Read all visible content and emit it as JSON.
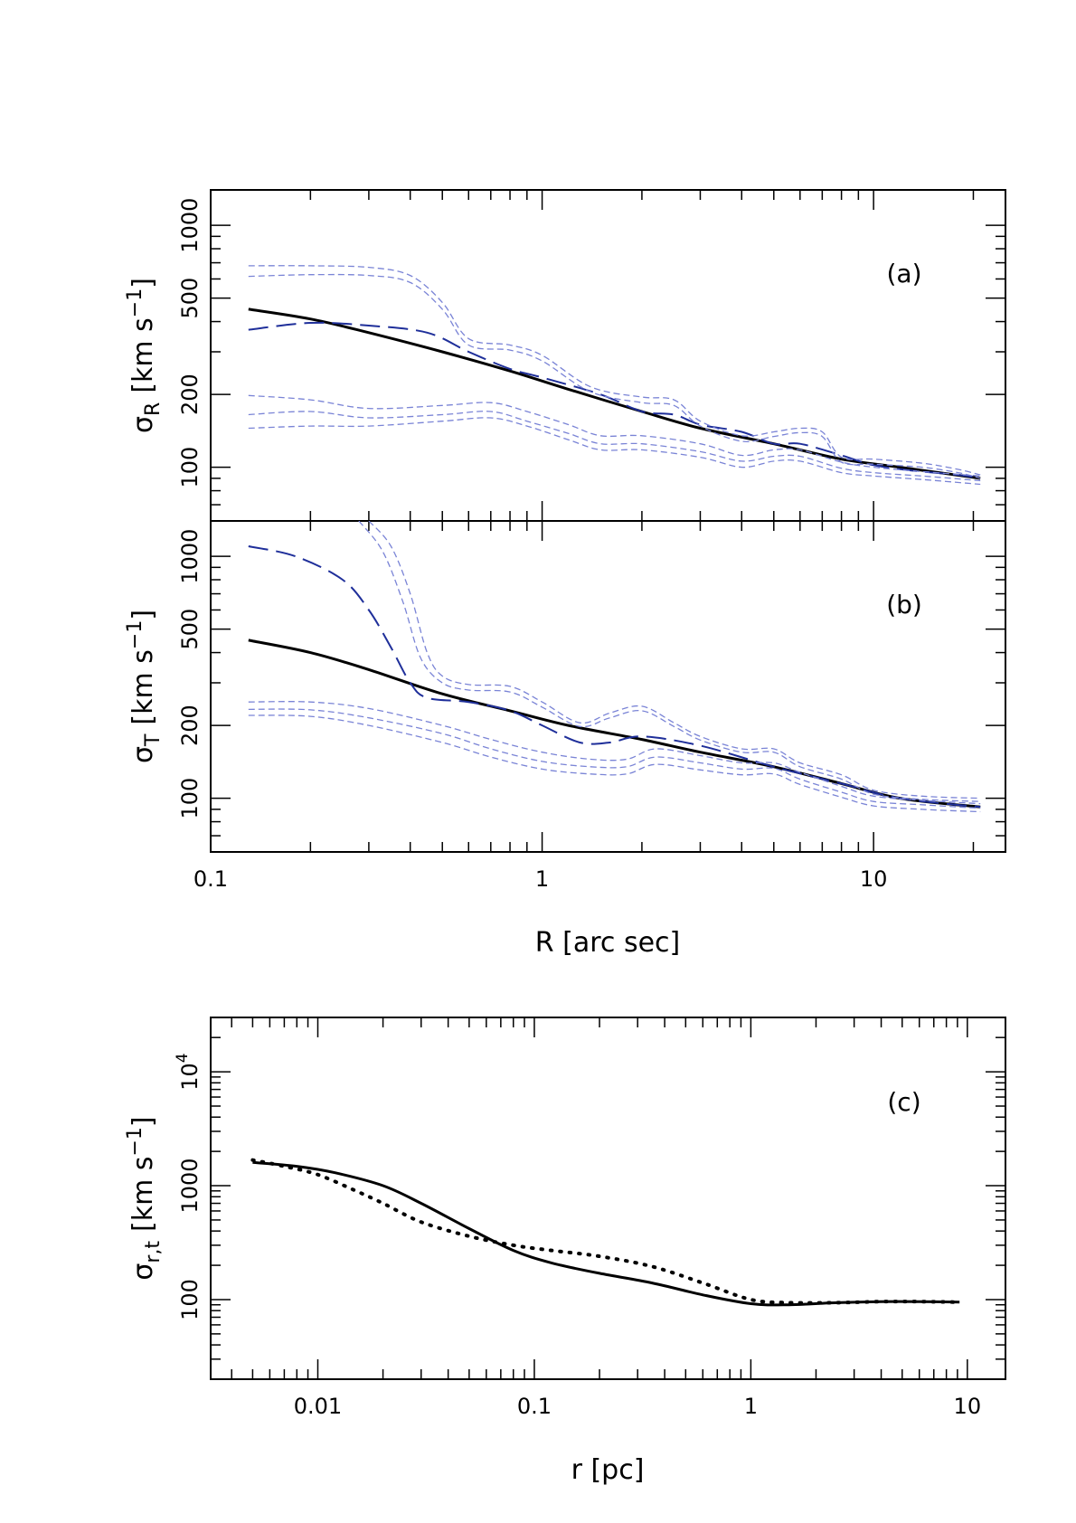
{
  "figure": {
    "shared_xlabel_top": "R [arc sec]",
    "xlabel_bottom": "r [pc]"
  },
  "colors": {
    "model": "#000000",
    "mean_dashed": "#1f2f9a",
    "bands": "#7a84d6"
  },
  "chart_data": [
    {
      "id": "a",
      "type": "line",
      "panel_label": "(a)",
      "ylabel": "σR [km s−1]",
      "ylabel_main": "σ",
      "ylabel_sub": "R",
      "ylabel_units": "[km s",
      "ylabel_exp": "−1",
      "ylabel_close": "]",
      "xlabel": "R [arc sec]",
      "xscale": "log",
      "yscale": "log",
      "xlim": [
        0.1,
        25
      ],
      "ylim": [
        60,
        1400
      ],
      "xtick_labels": [],
      "ytick_labels": [
        "100",
        "200",
        "500",
        "1000"
      ],
      "ytick_values": [
        100,
        200,
        500,
        1000
      ],
      "series": [
        {
          "name": "model",
          "style": "solid",
          "x": [
            0.13,
            0.2,
            0.3,
            0.5,
            0.8,
            1.2,
            2,
            3,
            5,
            8,
            12,
            21
          ],
          "y": [
            450,
            410,
            360,
            300,
            250,
            210,
            170,
            145,
            125,
            108,
            100,
            90
          ]
        },
        {
          "name": "mean",
          "style": "dashed",
          "x": [
            0.13,
            0.2,
            0.3,
            0.45,
            0.6,
            0.8,
            1.0,
            1.5,
            2,
            2.5,
            3,
            4,
            5,
            6,
            8,
            10,
            13,
            18,
            21
          ],
          "y": [
            370,
            395,
            385,
            360,
            300,
            255,
            235,
            200,
            170,
            165,
            150,
            140,
            125,
            125,
            112,
            102,
            97,
            93,
            90
          ]
        },
        {
          "name": "upper-1",
          "style": "band",
          "x": [
            0.13,
            0.2,
            0.3,
            0.4,
            0.5,
            0.6,
            0.8,
            1.0,
            1.4,
            2,
            2.5,
            3,
            4,
            5,
            6,
            7,
            8,
            10,
            14,
            18,
            21
          ],
          "y": [
            680,
            680,
            670,
            620,
            480,
            340,
            320,
            290,
            215,
            195,
            190,
            155,
            135,
            140,
            145,
            140,
            110,
            108,
            104,
            98,
            93
          ]
        },
        {
          "name": "upper-2",
          "style": "band",
          "x": [
            0.13,
            0.2,
            0.3,
            0.4,
            0.5,
            0.6,
            0.8,
            1.0,
            1.4,
            2,
            2.5,
            3,
            4,
            5,
            6,
            7,
            8,
            10,
            14,
            18,
            21
          ],
          "y": [
            615,
            625,
            620,
            580,
            450,
            320,
            305,
            275,
            205,
            185,
            180,
            148,
            128,
            134,
            139,
            134,
            105,
            103,
            100,
            95,
            90
          ]
        },
        {
          "name": "lower-1",
          "style": "band",
          "x": [
            0.13,
            0.2,
            0.3,
            0.5,
            0.7,
            0.9,
            1.2,
            1.5,
            2,
            3,
            4,
            5,
            6,
            8,
            10,
            14,
            21
          ],
          "y": [
            198,
            190,
            175,
            180,
            185,
            170,
            150,
            135,
            135,
            125,
            112,
            118,
            118,
            105,
            100,
            96,
            92
          ]
        },
        {
          "name": "lower-2",
          "style": "band",
          "x": [
            0.13,
            0.2,
            0.3,
            0.5,
            0.7,
            0.9,
            1.2,
            1.5,
            2,
            3,
            4,
            5,
            6,
            8,
            10,
            14,
            21
          ],
          "y": [
            165,
            170,
            160,
            165,
            170,
            155,
            138,
            125,
            125,
            116,
            106,
            111,
            111,
            99,
            95,
            92,
            88
          ]
        },
        {
          "name": "lower-3",
          "style": "band",
          "x": [
            0.13,
            0.2,
            0.3,
            0.5,
            0.7,
            0.9,
            1.2,
            1.5,
            2,
            3,
            4,
            5,
            6,
            8,
            10,
            14,
            21
          ],
          "y": [
            145,
            148,
            148,
            155,
            160,
            148,
            130,
            118,
            118,
            110,
            100,
            106,
            106,
            95,
            92,
            89,
            85
          ]
        }
      ]
    },
    {
      "id": "b",
      "type": "line",
      "panel_label": "(b)",
      "ylabel": "σT [km s−1]",
      "ylabel_main": "σ",
      "ylabel_sub": "T",
      "ylabel_units": "[km s",
      "ylabel_exp": "−1",
      "ylabel_close": "]",
      "xlabel": "R [arc sec]",
      "xscale": "log",
      "yscale": "log",
      "xlim": [
        0.1,
        25
      ],
      "ylim": [
        60,
        1400
      ],
      "xtick_labels": [
        "0.1",
        "1",
        "10"
      ],
      "xtick_values": [
        0.1,
        1,
        10
      ],
      "ytick_labels": [
        "100",
        "200",
        "500",
        "1000"
      ],
      "ytick_values": [
        100,
        200,
        500,
        1000
      ],
      "series": [
        {
          "name": "model",
          "style": "solid",
          "x": [
            0.13,
            0.2,
            0.3,
            0.5,
            0.8,
            1.2,
            2,
            3,
            5,
            8,
            12,
            21
          ],
          "y": [
            450,
            400,
            340,
            270,
            230,
            200,
            175,
            155,
            135,
            115,
            100,
            92
          ]
        },
        {
          "name": "mean",
          "style": "dashed",
          "x": [
            0.13,
            0.18,
            0.25,
            0.3,
            0.35,
            0.4,
            0.45,
            0.6,
            0.8,
            1.0,
            1.3,
            1.6,
            2,
            3,
            5,
            8,
            12,
            21
          ],
          "y": [
            1100,
            1000,
            800,
            600,
            420,
            300,
            260,
            250,
            230,
            200,
            170,
            170,
            180,
            165,
            135,
            115,
            100,
            92
          ]
        },
        {
          "name": "upper-1",
          "style": "band",
          "x": [
            0.3,
            0.35,
            0.4,
            0.45,
            0.5,
            0.6,
            0.8,
            1.0,
            1.3,
            1.6,
            2,
            2.5,
            3,
            4,
            5,
            6,
            8,
            10,
            14,
            21
          ],
          "y": [
            1400,
            1100,
            700,
            400,
            320,
            295,
            290,
            250,
            205,
            225,
            240,
            205,
            180,
            160,
            160,
            140,
            125,
            108,
            102,
            100
          ]
        },
        {
          "name": "upper-2",
          "style": "band",
          "x": [
            0.28,
            0.33,
            0.38,
            0.43,
            0.5,
            0.6,
            0.8,
            1.0,
            1.3,
            1.6,
            2,
            2.5,
            3,
            4,
            5,
            6,
            8,
            10,
            14,
            21
          ],
          "y": [
            1400,
            1050,
            650,
            380,
            300,
            280,
            275,
            238,
            198,
            215,
            230,
            198,
            174,
            155,
            155,
            135,
            120,
            104,
            99,
            97
          ]
        },
        {
          "name": "lower-1",
          "style": "band",
          "x": [
            0.13,
            0.2,
            0.3,
            0.5,
            0.7,
            1.0,
            1.4,
            1.8,
            2.2,
            3,
            4,
            5,
            6,
            8,
            10,
            14,
            21
          ],
          "y": [
            250,
            250,
            235,
            200,
            175,
            155,
            145,
            145,
            160,
            150,
            140,
            140,
            128,
            112,
            102,
            98,
            95
          ]
        },
        {
          "name": "lower-2",
          "style": "band",
          "x": [
            0.13,
            0.2,
            0.3,
            0.5,
            0.7,
            1.0,
            1.4,
            1.8,
            2.2,
            3,
            4,
            5,
            6,
            8,
            10,
            14,
            21
          ],
          "y": [
            233,
            232,
            215,
            185,
            160,
            142,
            135,
            135,
            148,
            140,
            132,
            133,
            120,
            106,
            97,
            94,
            91
          ]
        },
        {
          "name": "lower-3",
          "style": "band",
          "x": [
            0.13,
            0.2,
            0.3,
            0.5,
            0.7,
            1.0,
            1.4,
            1.8,
            2.2,
            3,
            4,
            5,
            6,
            8,
            10,
            14,
            21
          ],
          "y": [
            220,
            218,
            200,
            170,
            148,
            132,
            126,
            126,
            138,
            131,
            125,
            126,
            114,
            101,
            93,
            90,
            88
          ]
        }
      ]
    },
    {
      "id": "c",
      "type": "line",
      "panel_label": "(c)",
      "ylabel": "σr,t [km s−1]",
      "ylabel_main": "σ",
      "ylabel_sub": "r,t",
      "ylabel_units": "[km s",
      "ylabel_exp": "−1",
      "ylabel_close": "]",
      "xlabel": "r [pc]",
      "xscale": "log",
      "yscale": "log",
      "xlim": [
        0.0032,
        15
      ],
      "ylim": [
        20,
        30000
      ],
      "xtick_labels": [
        "0.01",
        "0.1",
        "1",
        "10"
      ],
      "xtick_values": [
        0.01,
        0.1,
        1,
        10
      ],
      "ytick_labels": [
        "100",
        "1000"
      ],
      "ytick_values": [
        100,
        1000
      ],
      "ytick_power_label": {
        "value": 10000,
        "base": "10",
        "exp": "4"
      },
      "series": [
        {
          "name": "sigma_r",
          "style": "solid",
          "x": [
            0.005,
            0.008,
            0.012,
            0.02,
            0.03,
            0.05,
            0.08,
            0.12,
            0.2,
            0.35,
            0.6,
            1.0,
            1.5,
            2.5,
            4,
            6,
            9.2
          ],
          "y": [
            1600,
            1480,
            1300,
            1000,
            700,
            420,
            270,
            210,
            170,
            140,
            110,
            92,
            90,
            94,
            96,
            96,
            95
          ]
        },
        {
          "name": "sigma_t",
          "style": "dotted",
          "x": [
            0.005,
            0.007,
            0.01,
            0.015,
            0.02,
            0.03,
            0.05,
            0.08,
            0.12,
            0.2,
            0.35,
            0.6,
            1.0,
            1.5,
            2.5,
            4,
            6,
            9.2
          ],
          "y": [
            1680,
            1480,
            1250,
            900,
            700,
            480,
            360,
            300,
            270,
            240,
            195,
            140,
            100,
            94,
            94,
            96,
            96,
            95
          ]
        }
      ]
    }
  ]
}
